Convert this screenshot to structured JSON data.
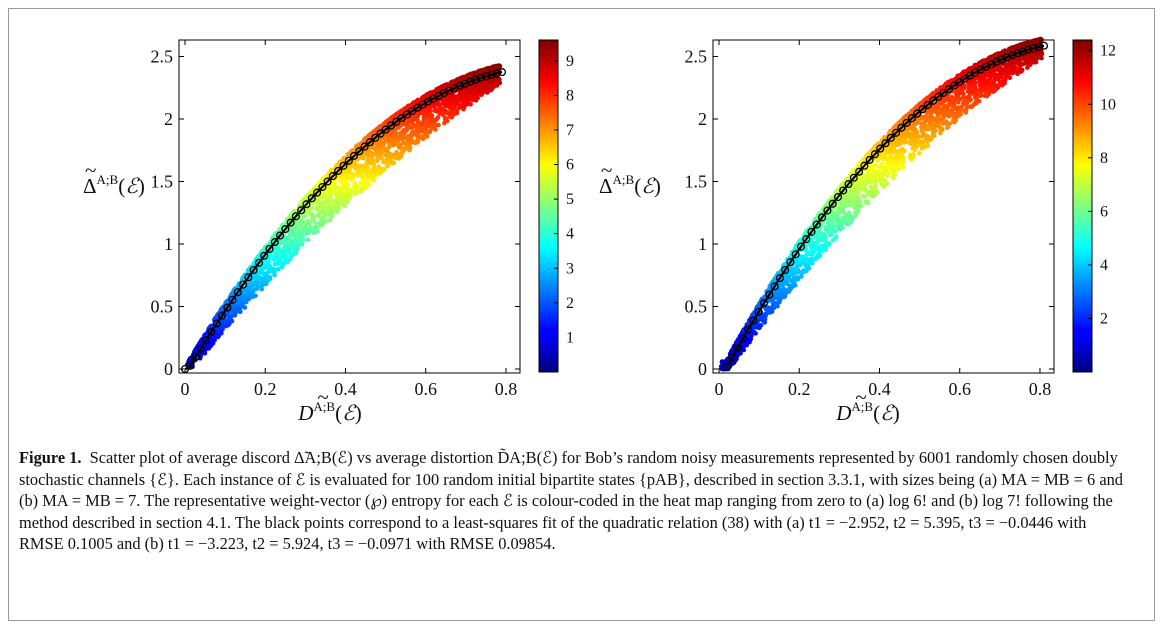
{
  "chart_data": [
    {
      "panel": "(a)",
      "type": "scatter",
      "xlabel": "D̃A;B(ℰ)",
      "ylabel": "Δ̃A;B(ℰ)",
      "xlim": [
        0,
        0.82
      ],
      "ylim": [
        0,
        2.6
      ],
      "x_ticks": [
        "0",
        "0.2",
        "0.4",
        "0.6",
        "0.8"
      ],
      "y_ticks": [
        "0",
        "0.5",
        "1",
        "1.5",
        "2",
        "2.5"
      ],
      "colorbar": {
        "min": 0,
        "max": 9.6,
        "ticks": [
          "1",
          "2",
          "3",
          "4",
          "5",
          "6",
          "7",
          "8",
          "9"
        ]
      },
      "fit": {
        "t1": -2.952,
        "t2": 5.395,
        "t3": -0.0446,
        "x_range": [
          0.0,
          0.79
        ]
      },
      "scatter_points": 6001
    },
    {
      "panel": "(b)",
      "type": "scatter",
      "xlabel": "D̃A;B(ℰ)",
      "ylabel": "Δ̃A;B(ℰ)",
      "xlim": [
        0,
        0.82
      ],
      "ylim": [
        0,
        2.6
      ],
      "x_ticks": [
        "0",
        "0.2",
        "0.4",
        "0.6",
        "0.8"
      ],
      "y_ticks": [
        "0",
        "0.5",
        "1",
        "1.5",
        "2",
        "2.5"
      ],
      "colorbar": {
        "min": 0,
        "max": 12.4,
        "ticks": [
          "2",
          "4",
          "6",
          "8",
          "10",
          "12"
        ]
      },
      "fit": {
        "t1": -3.223,
        "t2": 5.924,
        "t3": -0.0971,
        "x_range": [
          0.02,
          0.81
        ]
      },
      "scatter_points": 6001
    }
  ],
  "caption": {
    "label": "Figure 1.",
    "text": "Scatter plot of average discord Δ̃A;B(ℰ) vs average distortion D̃A;B(ℰ) for Bob’s random noisy measurements represented by 6001 randomly chosen doubly stochastic channels {ℰ}. Each instance of ℰ is evaluated for 100 random initial bipartite states {pAB}, described in section 3.3.1, with sizes being (a) MA = MB = 6 and (b) MA = MB = 7. The representative weight-vector (℘) entropy for each ℰ is colour-coded in the heat map ranging from zero to (a) log 6! and (b) log 7! following the method described in section 4.1. The black points correspond to a least-squares fit of the quadratic relation (38) with (a) t1 = −2.952, t2 = 5.395, t3 = −0.0446 with RMSE 0.1005 and (b) t1 = −3.223, t2 = 5.924, t3 = −0.0971 with RMSE 0.09854."
  },
  "colors": {
    "fit_line": "#000000",
    "frame": "#9a9a9a",
    "link": "#2a6ebb"
  }
}
